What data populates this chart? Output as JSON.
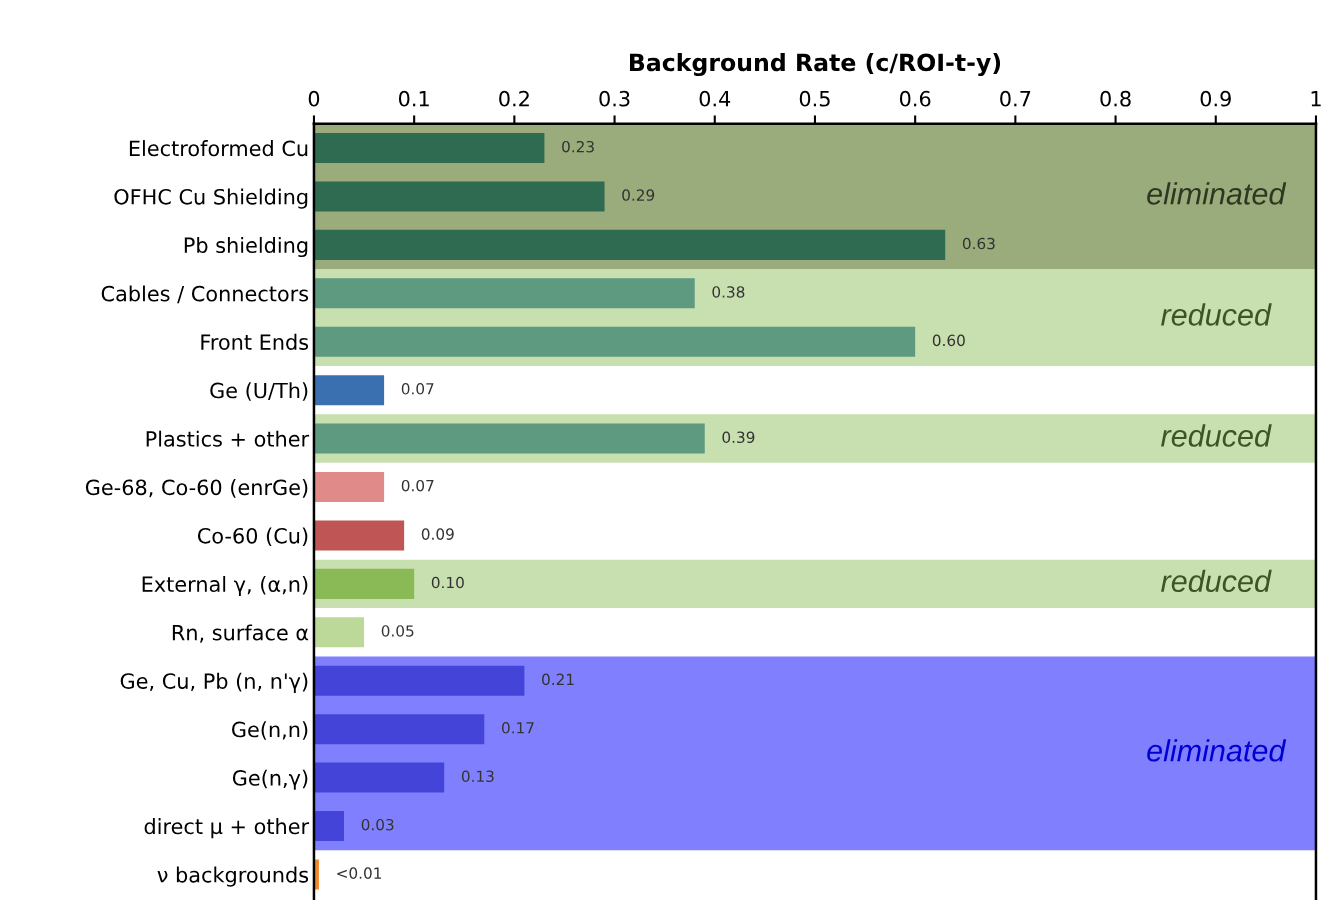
{
  "chart_data": {
    "type": "bar",
    "orientation": "horizontal",
    "xlabel": "Background Rate (c/ROI-t-y)",
    "categories": [
      "Electroformed Cu",
      "OFHC Cu Shielding",
      "Pb shielding",
      "Cables / Connectors",
      "Front Ends",
      "Ge (U/Th)",
      "Plastics + other",
      "Ge-68, Co-60 (enrGe)",
      "Co-60 (Cu)",
      "External γ, (α,n)",
      "Rn, surface α",
      "Ge, Cu, Pb (n, n'γ)",
      "Ge(n,n)",
      "Ge(n,γ)",
      "direct μ + other",
      "ν backgrounds"
    ],
    "values": [
      0.23,
      0.29,
      0.63,
      0.38,
      0.6,
      0.07,
      0.39,
      0.07,
      0.09,
      0.1,
      0.05,
      0.21,
      0.17,
      0.13,
      0.03,
      0.005
    ],
    "colors": [
      "#2f6b50",
      "#2f6b50",
      "#2f6b50",
      "#5e9a80",
      "#5e9a80",
      "#3a70b0",
      "#5e9a80",
      "#e08a8a",
      "#c05555",
      "#8aba55",
      "#bcd99a",
      "#4444d8",
      "#4444d8",
      "#4444d8",
      "#4444d8",
      "#f08a30"
    ],
    "value_labels": [
      "0.23",
      "0.29",
      "0.63",
      "0.38",
      "0.60",
      "0.07",
      "0.39",
      "0.07",
      "0.09",
      "0.10",
      "0.05",
      "0.21",
      "0.17",
      "0.13",
      "0.03",
      "<0.01"
    ],
    "xlim": [
      0,
      1
    ],
    "xticks": [
      0,
      0.1,
      0.2,
      0.3,
      0.4,
      0.5,
      0.6,
      0.7,
      0.8,
      0.9,
      1
    ],
    "bands": [
      {
        "axis": "y",
        "from": "Electroformed Cu",
        "to": "Pb shielding",
        "label": "eliminated",
        "color": "#9aac7c"
      },
      {
        "axis": "y",
        "from": "Cables / Connectors",
        "to": "Front Ends",
        "label": "reduced",
        "color": "#c8dfb0"
      },
      {
        "axis": "y",
        "from": "Plastics + other",
        "to": "Plastics + other",
        "label": "reduced",
        "color": "#c8dfb0"
      },
      {
        "axis": "y",
        "from": "External γ, (α,n)",
        "to": "External γ, (α,n)",
        "label": "reduced",
        "color": "#c8dfb0"
      },
      {
        "axis": "y",
        "from": "Ge, Cu, Pb (n, n'γ)",
        "to": "direct μ + other",
        "label": "eliminated",
        "color": "#8080ff"
      }
    ],
    "grid": false
  }
}
